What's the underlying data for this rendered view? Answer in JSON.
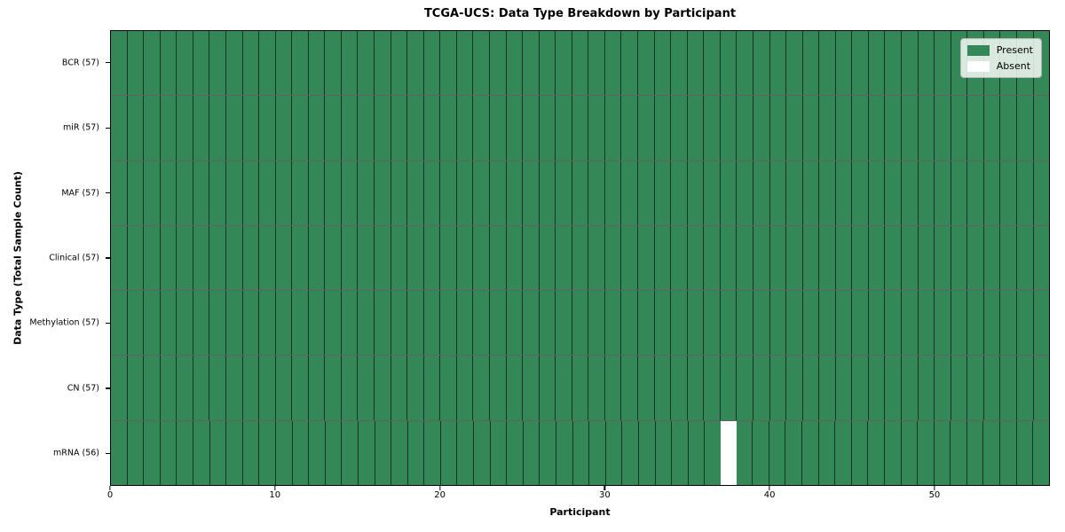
{
  "chart_data": {
    "type": "heatmap",
    "title": "TCGA-UCS: Data Type Breakdown by Participant",
    "xlabel": "Participant",
    "ylabel": "Data Type (Total Sample Count)",
    "x_range": [
      0,
      57
    ],
    "n_participants": 57,
    "x_ticks": [
      0,
      10,
      20,
      30,
      40,
      50
    ],
    "grid": "cell-edges",
    "rows": [
      {
        "label": "BCR (57)",
        "data_type": "BCR",
        "total": 57,
        "absent_participants": []
      },
      {
        "label": "miR (57)",
        "data_type": "miR",
        "total": 57,
        "absent_participants": []
      },
      {
        "label": "MAF (57)",
        "data_type": "MAF",
        "total": 57,
        "absent_participants": []
      },
      {
        "label": "Clinical (57)",
        "data_type": "Clinical",
        "total": 57,
        "absent_participants": []
      },
      {
        "label": "Methylation (57)",
        "data_type": "Methylation",
        "total": 57,
        "absent_participants": []
      },
      {
        "label": "CN (57)",
        "data_type": "CN",
        "total": 57,
        "absent_participants": []
      },
      {
        "label": "mRNA (56)",
        "data_type": "mRNA",
        "total": 56,
        "absent_participants": [
          37
        ]
      }
    ],
    "legend": {
      "position": "upper right",
      "entries": [
        {
          "label": "Present",
          "color": "#348857"
        },
        {
          "label": "Absent",
          "color": "#ffffff"
        }
      ]
    },
    "colors": {
      "present": "#348857",
      "absent": "#ffffff",
      "cell_edge": "rgba(0,0,0,0.62)",
      "spine": "#000000"
    }
  }
}
